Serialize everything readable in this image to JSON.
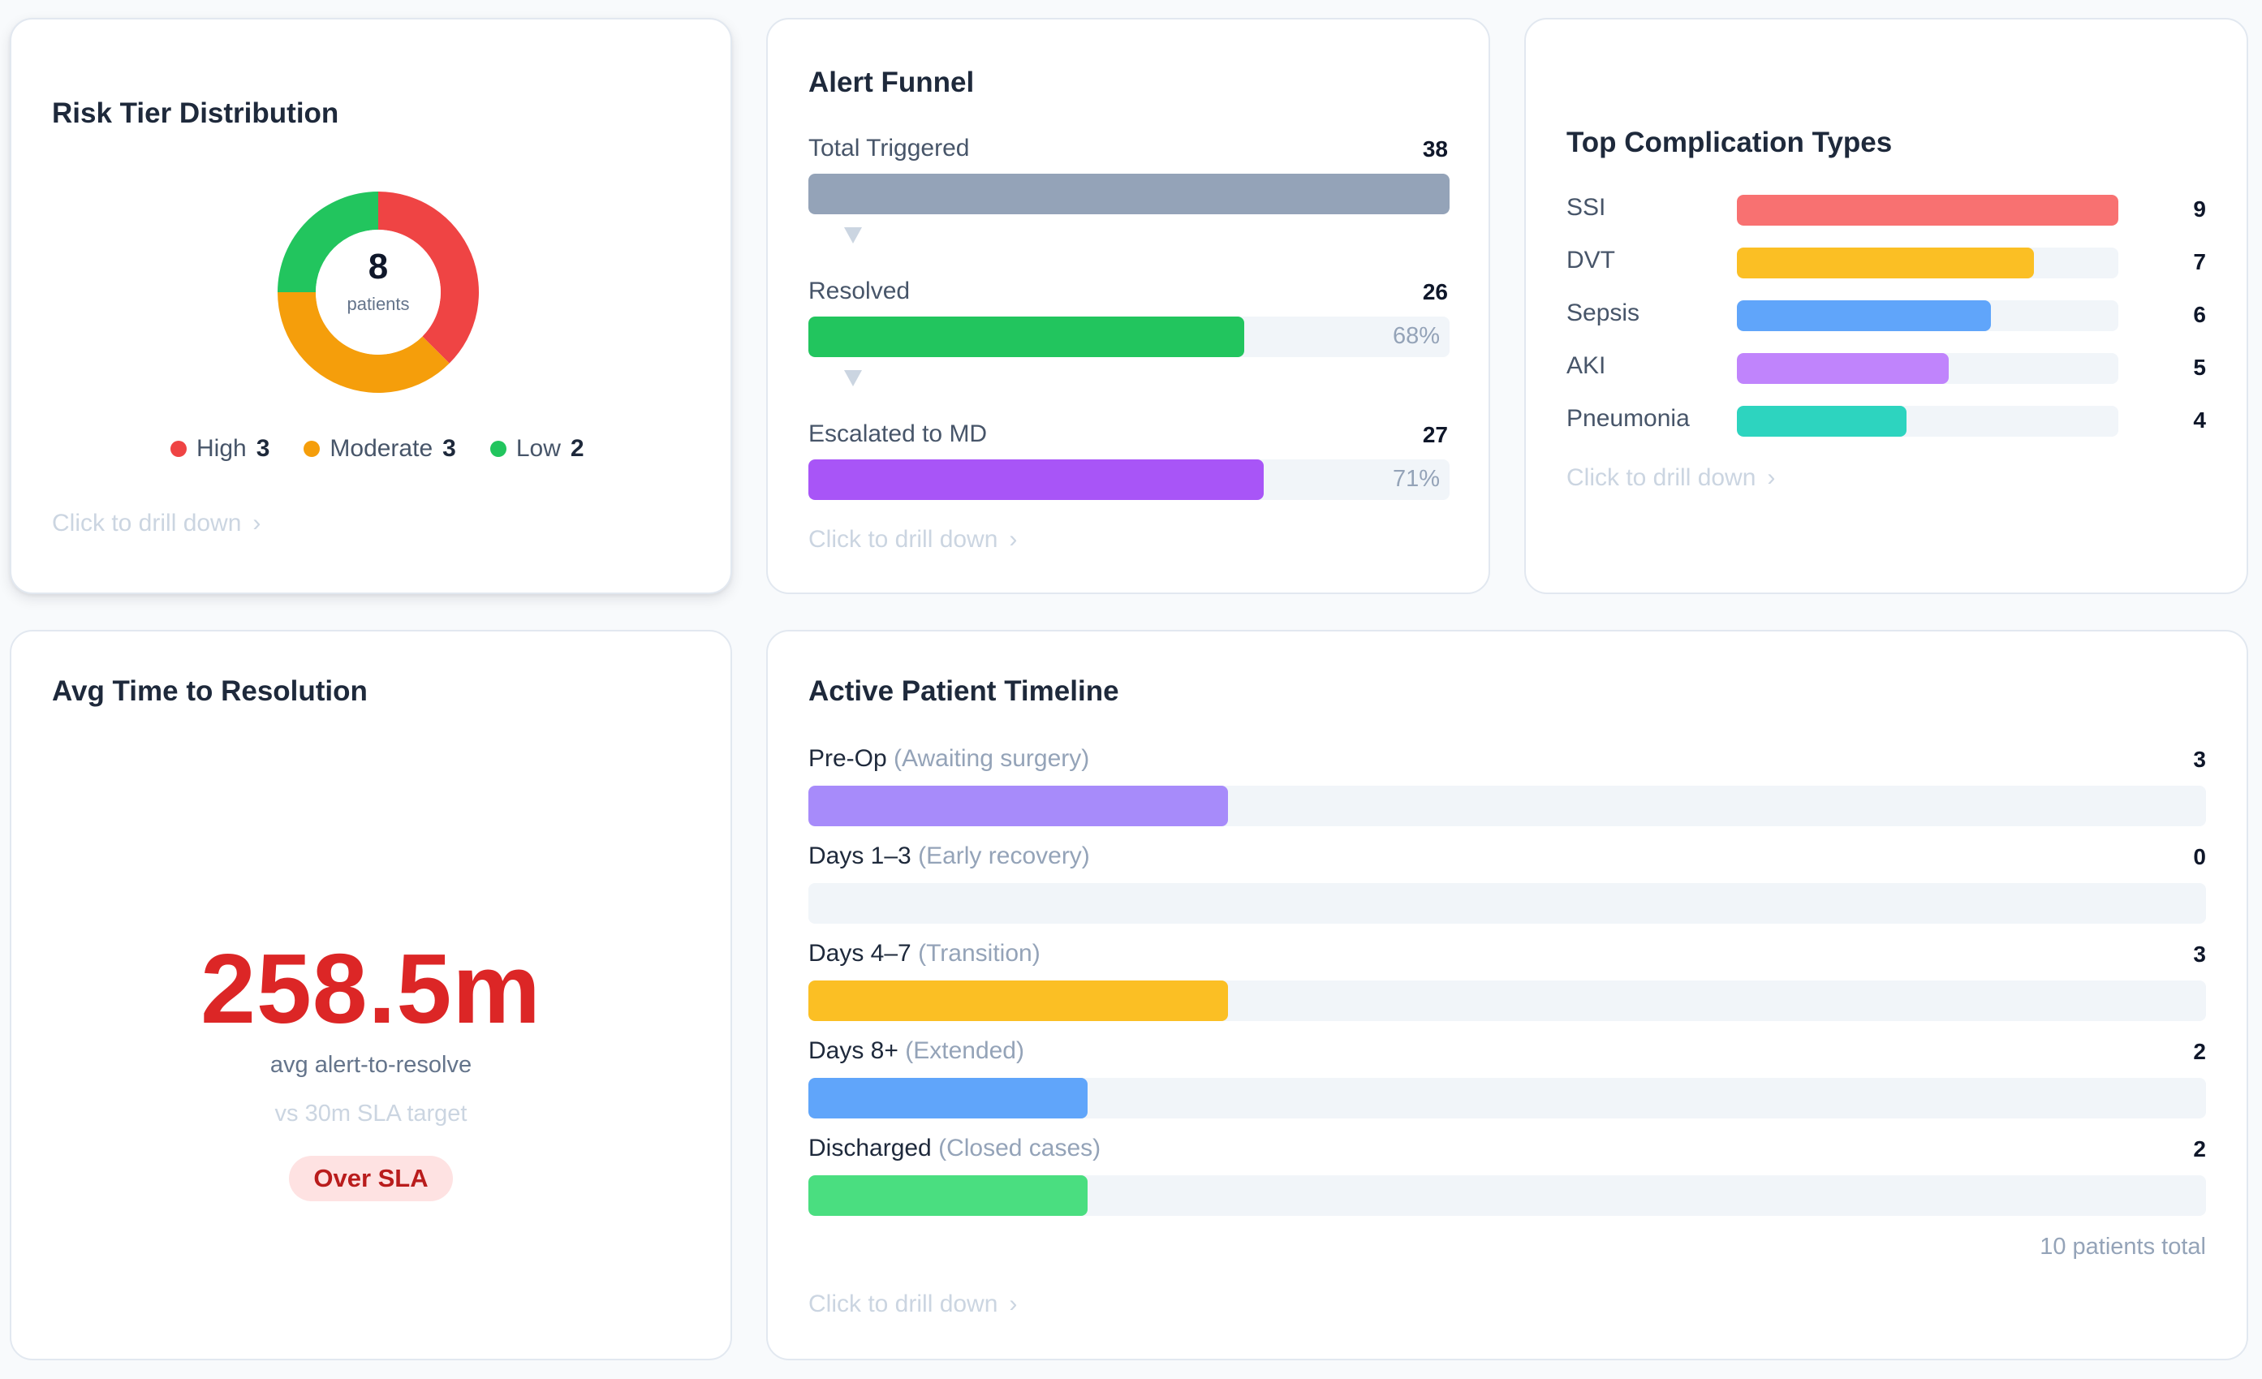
{
  "colors": {
    "high": "#ef4444",
    "moderate": "#f59e0b",
    "low": "#22c55e",
    "funnel_total": "#94a3b8",
    "funnel_resolved": "#22c55e",
    "funnel_escalated": "#a855f7",
    "ssi": "#f87171",
    "dvt": "#fbbf24",
    "sepsis": "#60a5fa",
    "aki": "#c084fc",
    "pneumonia": "#2dd4bf",
    "preop": "#a78bfa",
    "days13": "#a78bfa",
    "days47": "#fbbf24",
    "days8": "#60a5fa",
    "discharged": "#4ade80",
    "sla_value": "#dc2626",
    "sla_badge_bg": "#fee2e2",
    "sla_badge_text": "#b91c1c"
  },
  "risk": {
    "title": "Risk Tier Distribution",
    "total": "8",
    "total_label": "patients",
    "tiers": [
      {
        "label": "High",
        "count": "3",
        "value": 3
      },
      {
        "label": "Moderate",
        "count": "3",
        "value": 3
      },
      {
        "label": "Low",
        "count": "2",
        "value": 2
      }
    ],
    "drill": "Click to drill down"
  },
  "funnel": {
    "title": "Alert Funnel",
    "stages": [
      {
        "label": "Total Triggered",
        "count": "38",
        "fraction": 1.0,
        "pct": ""
      },
      {
        "label": "Resolved",
        "count": "26",
        "fraction": 0.68,
        "pct": "68%"
      },
      {
        "label": "Escalated to MD",
        "count": "27",
        "fraction": 0.71,
        "pct": "71%"
      }
    ],
    "drill": "Click to drill down"
  },
  "complications": {
    "title": "Top Complication Types",
    "max": 9,
    "items": [
      {
        "label": "SSI",
        "count": "9",
        "value": 9
      },
      {
        "label": "DVT",
        "count": "7",
        "value": 7
      },
      {
        "label": "Sepsis",
        "count": "6",
        "value": 6
      },
      {
        "label": "AKI",
        "count": "5",
        "value": 5
      },
      {
        "label": "Pneumonia",
        "count": "4",
        "value": 4
      }
    ],
    "drill": "Click to drill down"
  },
  "resolution": {
    "title": "Avg Time to Resolution",
    "value": "258.5m",
    "subtitle": "avg alert-to-resolve",
    "target": "vs 30m SLA target",
    "badge": "Over SLA"
  },
  "timeline": {
    "title": "Active Patient Timeline",
    "total_patients": 10,
    "rows": [
      {
        "label": "Pre-Op",
        "sub": "(Awaiting surgery)",
        "count": "3",
        "value": 3
      },
      {
        "label": "Days 1–3",
        "sub": "(Early recovery)",
        "count": "0",
        "value": 0
      },
      {
        "label": "Days 4–7",
        "sub": "(Transition)",
        "count": "3",
        "value": 3
      },
      {
        "label": "Days 8+",
        "sub": "(Extended)",
        "count": "2",
        "value": 2
      },
      {
        "label": "Discharged",
        "sub": "(Closed cases)",
        "count": "2",
        "value": 2
      }
    ],
    "footer": "10 patients total",
    "drill": "Click to drill down"
  }
}
